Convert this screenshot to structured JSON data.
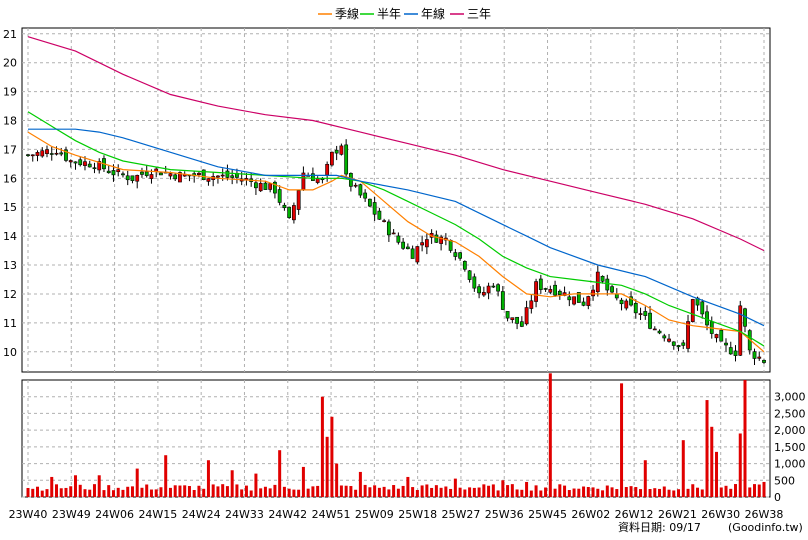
{
  "legend": [
    {
      "label": "季線",
      "color": "#ff8000"
    },
    {
      "label": "半年",
      "color": "#00cc00"
    },
    {
      "label": "年線",
      "color": "#0066cc"
    },
    {
      "label": "三年",
      "color": "#cc0066"
    }
  ],
  "footer": {
    "date_label": "資料日期: 09/17",
    "source": "(Goodinfo.tw)"
  },
  "colors": {
    "up": "#e00000",
    "down": "#00b000",
    "volume": "#e00000",
    "grid": "#b0b0b0"
  },
  "chart_data": [
    {
      "type": "candlestick-line",
      "ylim": [
        9.3,
        21.2
      ],
      "y_ticks": [
        10,
        11,
        12,
        13,
        14,
        15,
        16,
        17,
        18,
        19,
        20,
        21
      ],
      "x_ticks": [
        "23W40",
        "23W49",
        "24W06",
        "24W15",
        "24W24",
        "24W33",
        "24W42",
        "24W51",
        "25W09",
        "25W18",
        "25W27",
        "25W36",
        "25W45",
        "26W02",
        "26W12",
        "26W21",
        "26W30",
        "26W38"
      ],
      "n_weeks": 156,
      "close_anchors": [
        [
          0,
          16.8
        ],
        [
          3,
          16.9
        ],
        [
          6,
          17.0
        ],
        [
          9,
          16.6
        ],
        [
          14,
          16.5
        ],
        [
          18,
          16.2
        ],
        [
          22,
          16.0
        ],
        [
          26,
          16.3
        ],
        [
          32,
          16.1
        ],
        [
          38,
          16.1
        ],
        [
          45,
          16.0
        ],
        [
          52,
          15.6
        ],
        [
          55,
          14.5
        ],
        [
          58,
          16.2
        ],
        [
          62,
          15.9
        ],
        [
          64,
          16.8
        ],
        [
          66,
          17.2
        ],
        [
          67,
          16.0
        ],
        [
          70,
          15.4
        ],
        [
          74,
          14.6
        ],
        [
          78,
          13.8
        ],
        [
          81,
          13.4
        ],
        [
          84,
          14.0
        ],
        [
          88,
          13.9
        ],
        [
          92,
          13.0
        ],
        [
          95,
          11.9
        ],
        [
          98,
          12.4
        ],
        [
          101,
          11.2
        ],
        [
          104,
          10.9
        ],
        [
          107,
          12.3
        ],
        [
          110,
          12.2
        ],
        [
          113,
          12.0
        ],
        [
          117,
          11.7
        ],
        [
          120,
          12.6
        ],
        [
          123,
          11.9
        ],
        [
          126,
          11.6
        ],
        [
          129,
          11.3
        ],
        [
          132,
          10.8
        ],
        [
          135,
          10.5
        ],
        [
          138,
          10.1
        ],
        [
          140,
          11.9
        ],
        [
          143,
          10.9
        ],
        [
          146,
          10.2
        ],
        [
          149,
          10.0
        ],
        [
          150,
          11.6
        ],
        [
          152,
          10.0
        ],
        [
          155,
          9.7
        ]
      ],
      "series": [
        {
          "name": "季線",
          "color": "#ff8000",
          "points": [
            [
              0,
              17.6
            ],
            [
              5,
              17.1
            ],
            [
              10,
              16.8
            ],
            [
              20,
              16.3
            ],
            [
              30,
              16.2
            ],
            [
              40,
              16.0
            ],
            [
              50,
              15.9
            ],
            [
              55,
              15.6
            ],
            [
              60,
              15.6
            ],
            [
              64,
              15.9
            ],
            [
              66,
              16.1
            ],
            [
              70,
              15.9
            ],
            [
              75,
              15.2
            ],
            [
              80,
              14.5
            ],
            [
              85,
              14.0
            ],
            [
              90,
              13.8
            ],
            [
              95,
              13.3
            ],
            [
              100,
              12.6
            ],
            [
              105,
              12.0
            ],
            [
              110,
              11.9
            ],
            [
              115,
              12.0
            ],
            [
              120,
              12.0
            ],
            [
              125,
              12.0
            ],
            [
              130,
              11.6
            ],
            [
              135,
              11.1
            ],
            [
              140,
              10.9
            ],
            [
              145,
              10.8
            ],
            [
              150,
              10.7
            ],
            [
              155,
              10.0
            ]
          ]
        },
        {
          "name": "半年",
          "color": "#00cc00",
          "points": [
            [
              0,
              18.3
            ],
            [
              5,
              17.8
            ],
            [
              10,
              17.3
            ],
            [
              15,
              16.9
            ],
            [
              20,
              16.6
            ],
            [
              30,
              16.3
            ],
            [
              40,
              16.2
            ],
            [
              50,
              16.1
            ],
            [
              60,
              16.0
            ],
            [
              66,
              16.0
            ],
            [
              70,
              15.9
            ],
            [
              75,
              15.6
            ],
            [
              80,
              15.2
            ],
            [
              85,
              14.8
            ],
            [
              90,
              14.4
            ],
            [
              95,
              13.9
            ],
            [
              100,
              13.3
            ],
            [
              105,
              12.9
            ],
            [
              110,
              12.6
            ],
            [
              115,
              12.5
            ],
            [
              120,
              12.4
            ],
            [
              125,
              12.3
            ],
            [
              130,
              12.0
            ],
            [
              135,
              11.6
            ],
            [
              140,
              11.3
            ],
            [
              145,
              11.0
            ],
            [
              150,
              10.7
            ],
            [
              155,
              10.2
            ]
          ]
        },
        {
          "name": "年線",
          "color": "#0066cc",
          "points": [
            [
              0,
              17.7
            ],
            [
              10,
              17.7
            ],
            [
              15,
              17.6
            ],
            [
              20,
              17.4
            ],
            [
              30,
              16.9
            ],
            [
              40,
              16.4
            ],
            [
              50,
              16.1
            ],
            [
              55,
              16.1
            ],
            [
              60,
              16.1
            ],
            [
              65,
              16.1
            ],
            [
              70,
              15.9
            ],
            [
              80,
              15.6
            ],
            [
              90,
              15.2
            ],
            [
              100,
              14.4
            ],
            [
              105,
              14.0
            ],
            [
              110,
              13.6
            ],
            [
              120,
              13.0
            ],
            [
              130,
              12.6
            ],
            [
              140,
              11.9
            ],
            [
              150,
              11.3
            ],
            [
              155,
              10.9
            ]
          ]
        },
        {
          "name": "三年",
          "color": "#cc0066",
          "points": [
            [
              0,
              20.9
            ],
            [
              10,
              20.4
            ],
            [
              20,
              19.6
            ],
            [
              30,
              18.9
            ],
            [
              40,
              18.5
            ],
            [
              50,
              18.2
            ],
            [
              60,
              18.0
            ],
            [
              70,
              17.6
            ],
            [
              80,
              17.2
            ],
            [
              90,
              16.8
            ],
            [
              100,
              16.3
            ],
            [
              110,
              15.9
            ],
            [
              120,
              15.5
            ],
            [
              130,
              15.1
            ],
            [
              140,
              14.6
            ],
            [
              150,
              13.9
            ],
            [
              155,
              13.5
            ]
          ]
        }
      ]
    },
    {
      "type": "bar",
      "ylim": [
        0,
        3500
      ],
      "y_ticks": [
        "0",
        "500",
        "1,000",
        "1,500",
        "2,000",
        "2,500",
        "3,000"
      ],
      "y_tick_values": [
        0,
        500,
        1000,
        1500,
        2000,
        2500,
        3000
      ],
      "base_volume": 250,
      "spikes": [
        [
          5,
          600
        ],
        [
          10,
          650
        ],
        [
          15,
          650
        ],
        [
          23,
          850
        ],
        [
          29,
          1250
        ],
        [
          38,
          1100
        ],
        [
          43,
          800
        ],
        [
          48,
          700
        ],
        [
          53,
          1400
        ],
        [
          58,
          900
        ],
        [
          62,
          3000
        ],
        [
          63,
          1800
        ],
        [
          64,
          2400
        ],
        [
          65,
          1000
        ],
        [
          70,
          750
        ],
        [
          80,
          600
        ],
        [
          90,
          550
        ],
        [
          100,
          500
        ],
        [
          105,
          450
        ],
        [
          110,
          3700
        ],
        [
          125,
          3400
        ],
        [
          130,
          1100
        ],
        [
          138,
          1700
        ],
        [
          143,
          2900
        ],
        [
          144,
          2100
        ],
        [
          145,
          1350
        ],
        [
          150,
          1900
        ],
        [
          151,
          3500
        ],
        [
          155,
          450
        ]
      ]
    }
  ]
}
